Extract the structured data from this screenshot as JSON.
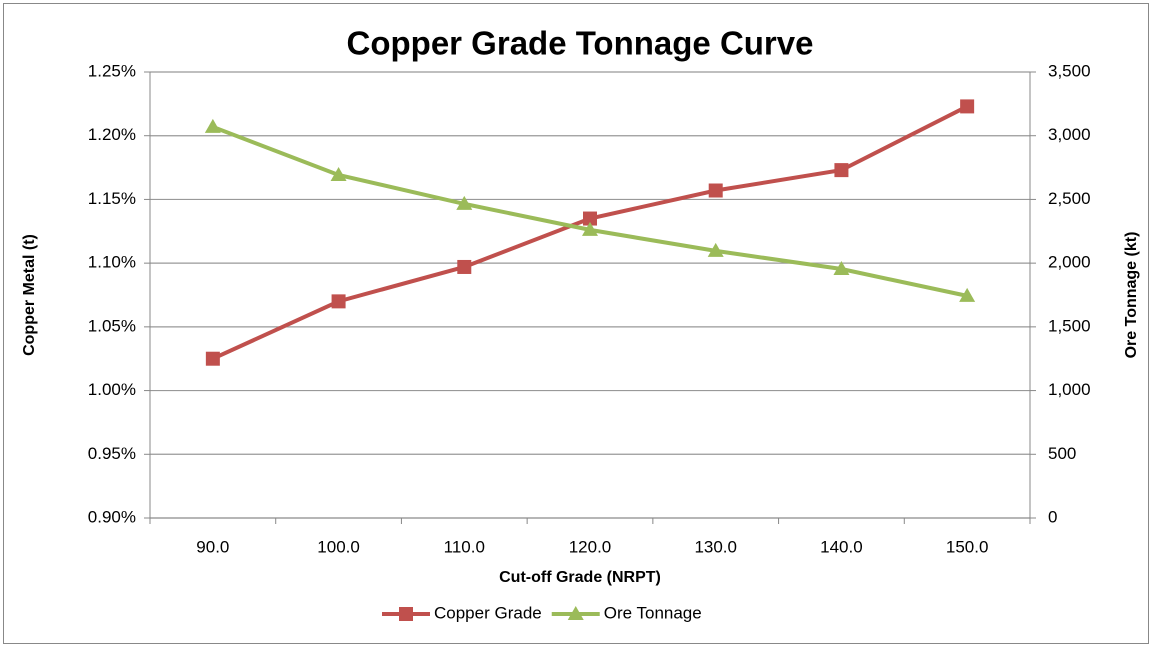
{
  "chart_data": {
    "type": "line",
    "title": "Copper Grade Tonnage Curve",
    "x_label": "Cut-off Grade (NRPT)",
    "y_label": "Copper Metal (t)",
    "y2_label": "Ore Tonnage (kt)",
    "categories": [
      "90.0",
      "100.0",
      "110.0",
      "120.0",
      "130.0",
      "140.0",
      "150.0"
    ],
    "series": [
      {
        "name": "Copper Grade",
        "color": "#c0504d",
        "marker": "square",
        "values": [
          1.025,
          1.07,
          1.097,
          1.135,
          1.157,
          1.173,
          1.223
        ]
      },
      {
        "name": "Ore Tonnage",
        "color": "#9bbb59",
        "marker": "triangle",
        "axis": "y2",
        "values": [
          3069,
          2692,
          2465,
          2261,
          2096,
          1954,
          1743
        ]
      }
    ],
    "ylim": [
      0.9,
      1.25
    ],
    "yticks": [
      {
        "value": 0.9,
        "label": "0.90%"
      },
      {
        "value": 0.95,
        "label": "0.95%"
      },
      {
        "value": 1.0,
        "label": "1.00%"
      },
      {
        "value": 1.05,
        "label": "1.05%"
      },
      {
        "value": 1.1,
        "label": "1.10%"
      },
      {
        "value": 1.15,
        "label": "1.15%"
      },
      {
        "value": 1.2,
        "label": "1.20%"
      },
      {
        "value": 1.25,
        "label": "1.25%"
      }
    ],
    "y2lim": [
      0,
      3500
    ],
    "y2ticks": [
      0,
      500,
      {
        "value": 1000,
        "label": "1,000"
      },
      {
        "value": 1500,
        "label": "1,500"
      },
      {
        "value": 2000,
        "label": "2,000"
      },
      {
        "value": 2500,
        "label": "2,500"
      },
      {
        "value": 3000,
        "label": "3,000"
      },
      {
        "value": 3500,
        "label": "3,500"
      }
    ],
    "grid": true,
    "legend": "bottom"
  }
}
